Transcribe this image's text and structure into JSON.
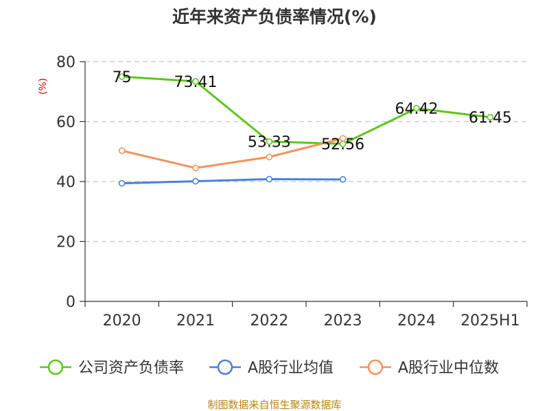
{
  "chart_data": {
    "type": "line",
    "title": "近年来资产负债率情况(%)",
    "ylabel": "(%)",
    "xlabel": "",
    "categories": [
      "2020",
      "2021",
      "2022",
      "2023",
      "2024",
      "2025H1"
    ],
    "ylim": [
      0,
      80
    ],
    "yticks": [
      0,
      20,
      40,
      60,
      80
    ],
    "grid": true,
    "legend_position": "bottom",
    "series": [
      {
        "name": "公司资产负债率",
        "color": "#5cc61e",
        "values": [
          75,
          73.41,
          53.33,
          52.56,
          64.42,
          61.45
        ],
        "labels": [
          "75",
          "73.41",
          "53.33",
          "52.56",
          "64.42",
          "61.45"
        ]
      },
      {
        "name": "A股行业均值",
        "color": "#4a7fd8",
        "values": [
          39.4,
          40.1,
          40.8,
          40.7,
          null,
          null
        ]
      },
      {
        "name": "A股行业中位数",
        "color": "#f4925a",
        "values": [
          50.3,
          44.5,
          48.2,
          54.4,
          null,
          null
        ]
      }
    ]
  },
  "source": "制图数据来自恒生聚源数据库"
}
